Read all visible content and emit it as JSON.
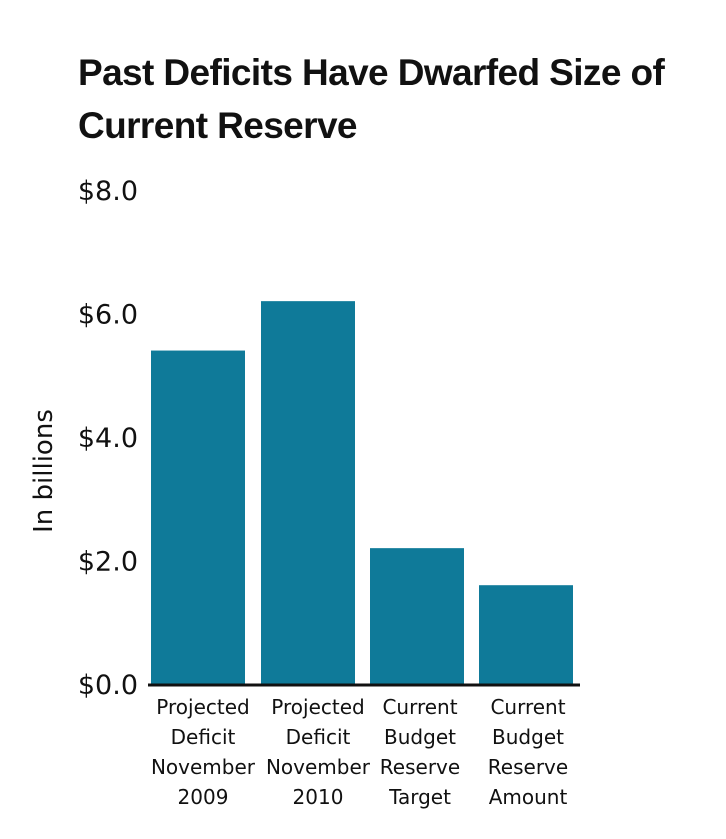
{
  "chart_data": {
    "type": "bar",
    "title": "Past Deficits Have Dwarfed Size of Current Reserve",
    "ylabel": "In billions",
    "xlabel": "",
    "ylim": [
      0,
      8
    ],
    "yticks": [
      "$0.0",
      "$2.0",
      "$4.0",
      "$6.0",
      "$8.0"
    ],
    "ytick_values": [
      0,
      2,
      4,
      6,
      8
    ],
    "categories": [
      "Projected Deficit November 2009",
      "Projected Deficit November 2010",
      "Current Budget Reserve Target",
      "Current Budget Reserve Amount"
    ],
    "category_lines": [
      [
        "Projected",
        "Deficit",
        "November",
        "2009"
      ],
      [
        "Projected",
        "Deficit",
        "November",
        "2010"
      ],
      [
        "Current",
        "Budget",
        "Reserve",
        "Target"
      ],
      [
        "Current",
        "Budget",
        "Reserve",
        "Amount"
      ]
    ],
    "values": [
      5.4,
      6.2,
      2.2,
      1.6
    ],
    "grid": false,
    "bar_color": "#0f7a99",
    "axis_color": "#111111"
  }
}
